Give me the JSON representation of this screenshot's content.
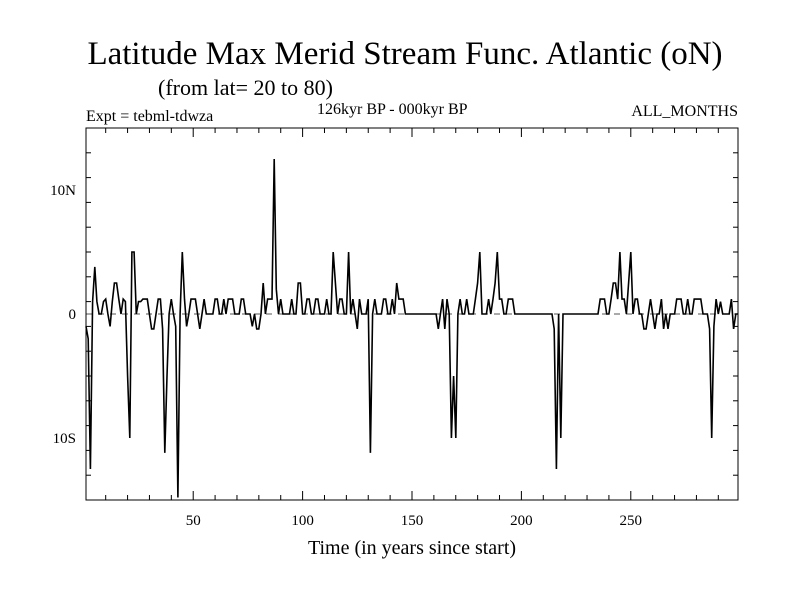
{
  "chart_data": {
    "type": "line",
    "title": "Latitude Max Merid Stream Func. Atlantic (oN)",
    "subtitle": "(from lat= 20 to 80)",
    "experiment_label": "Expt = tebml-tdwza",
    "period_label": "126kyr BP - 000kyr BP",
    "months_label": "ALL_MONTHS",
    "xlabel": "Time (in years since start)",
    "ylabel": "",
    "xlim": [
      1,
      299
    ],
    "ylim": [
      -15,
      15
    ],
    "x_ticks": [
      50,
      100,
      150,
      200,
      250
    ],
    "x_tick_labels": [
      "50",
      "100",
      "150",
      "200",
      "250"
    ],
    "x_minor_step": 10,
    "y_ticks": [
      -10,
      0,
      10
    ],
    "y_tick_labels": [
      "10S",
      "0",
      "10N"
    ],
    "y_minor_step": 2,
    "zero_line": "dashed",
    "series": [
      {
        "name": "Latitude Max",
        "x": [
          1,
          2,
          3,
          4,
          5,
          6,
          7,
          8,
          9,
          10,
          11,
          12,
          13,
          14,
          15,
          16,
          17,
          18,
          19,
          20,
          21,
          22,
          23,
          24,
          25,
          26,
          27,
          28,
          29,
          30,
          31,
          32,
          33,
          34,
          35,
          36,
          37,
          38,
          39,
          40,
          41,
          42,
          43,
          44,
          45,
          46,
          47,
          48,
          49,
          50,
          51,
          52,
          53,
          54,
          55,
          56,
          57,
          58,
          59,
          60,
          61,
          62,
          63,
          64,
          65,
          66,
          67,
          68,
          69,
          70,
          71,
          72,
          73,
          74,
          75,
          76,
          77,
          78,
          79,
          80,
          81,
          82,
          83,
          84,
          85,
          86,
          87,
          88,
          89,
          90,
          91,
          92,
          93,
          94,
          95,
          96,
          97,
          98,
          99,
          100,
          101,
          102,
          103,
          104,
          105,
          106,
          107,
          108,
          109,
          110,
          111,
          112,
          113,
          114,
          115,
          116,
          117,
          118,
          119,
          120,
          121,
          122,
          123,
          124,
          125,
          126,
          127,
          128,
          129,
          130,
          131,
          132,
          133,
          134,
          135,
          136,
          137,
          138,
          139,
          140,
          141,
          142,
          143,
          144,
          145,
          146,
          147,
          148,
          149,
          150,
          151,
          152,
          153,
          154,
          155,
          156,
          157,
          158,
          159,
          160,
          161,
          162,
          163,
          164,
          165,
          166,
          167,
          168,
          169,
          170,
          171,
          172,
          173,
          174,
          175,
          176,
          177,
          178,
          179,
          180,
          181,
          182,
          183,
          184,
          185,
          186,
          187,
          188,
          189,
          190,
          191,
          192,
          193,
          194,
          195,
          196,
          197,
          198,
          199,
          200,
          201,
          202,
          203,
          204,
          205,
          206,
          207,
          208,
          209,
          210,
          211,
          212,
          213,
          214,
          215,
          216,
          217,
          218,
          219,
          220,
          221,
          222,
          223,
          224,
          225,
          226,
          227,
          228,
          229,
          230,
          231,
          232,
          233,
          234,
          235,
          236,
          237,
          238,
          239,
          240,
          241,
          242,
          243,
          244,
          245,
          246,
          247,
          248,
          249,
          250,
          251,
          252,
          253,
          254,
          255,
          256,
          257,
          258,
          259,
          260,
          261,
          262,
          263,
          264,
          265,
          266,
          267,
          268,
          269,
          270,
          271,
          272,
          273,
          274,
          275,
          276,
          277,
          278,
          279,
          280,
          281,
          282,
          283,
          284,
          285,
          286,
          287,
          288,
          289,
          290,
          291,
          292,
          293,
          294,
          295,
          296,
          297,
          298,
          299
        ],
        "values": [
          -1,
          -2,
          -12.5,
          1,
          3.8,
          1,
          0,
          0,
          1,
          1.2,
          0,
          -1,
          1,
          2.5,
          2.5,
          1.2,
          0,
          1.2,
          1,
          -5,
          -10,
          5,
          5,
          0,
          1,
          1,
          1.2,
          1.2,
          1.2,
          0,
          -1.2,
          -1.2,
          0,
          1.2,
          1.2,
          -1.2,
          -11.2,
          -5,
          0,
          1.2,
          0,
          -1,
          -14.8,
          0,
          5,
          1.2,
          -1,
          0,
          1.2,
          1.2,
          1.2,
          0,
          -1.2,
          0,
          1.2,
          0,
          0,
          0,
          0,
          1.2,
          1.2,
          0,
          0,
          1.2,
          0,
          1.2,
          1.2,
          1.2,
          0,
          0,
          0,
          1.2,
          1.2,
          0,
          0,
          0,
          -1,
          0,
          -1.2,
          -1.2,
          0,
          2.5,
          0,
          1.2,
          1.2,
          1.2,
          12.5,
          2,
          0,
          1.2,
          0,
          0,
          0,
          0,
          1.2,
          0,
          0,
          2.5,
          2.5,
          0,
          0,
          1.2,
          1.2,
          0,
          0,
          1.2,
          1.2,
          0,
          0,
          0,
          1.2,
          0,
          0,
          5,
          2.5,
          0,
          1.2,
          1.2,
          0,
          0,
          5,
          0,
          1.2,
          0,
          -1.2,
          1.2,
          0,
          0,
          0,
          1.2,
          -11.2,
          0,
          1.2,
          0,
          0,
          0,
          1.2,
          1.2,
          0,
          0,
          1.2,
          0,
          2.5,
          1.2,
          1.2,
          1.2,
          0,
          0,
          0,
          0,
          0,
          0,
          0,
          0,
          0,
          0,
          0,
          0,
          0,
          0,
          0,
          -1.2,
          0,
          1.2,
          -1.2,
          1.2,
          0,
          -10,
          -5,
          -10,
          0,
          1.2,
          0,
          0,
          1.2,
          0,
          0,
          0,
          1.2,
          2.5,
          5,
          0,
          0,
          0,
          1.2,
          0,
          1.2,
          2.5,
          5,
          1.2,
          1.2,
          0,
          0,
          1.2,
          1.2,
          1.2,
          0,
          0,
          0,
          0,
          0,
          0,
          0,
          0,
          0,
          0,
          0,
          0,
          0,
          0,
          0,
          0,
          0,
          0,
          -1.2,
          -12.5,
          0,
          -10,
          0,
          0,
          0,
          0,
          0,
          0,
          0,
          0,
          0,
          0,
          0,
          0,
          0,
          0,
          0,
          0,
          0,
          1.2,
          1.2,
          1.2,
          0,
          0,
          1.2,
          2.5,
          2.5,
          1.2,
          5,
          1.2,
          1.2,
          0,
          2.5,
          5,
          0,
          1.2,
          1.2,
          0,
          0,
          -1.2,
          -1.2,
          0,
          1.2,
          0,
          -1.2,
          0,
          0,
          1.2,
          -1.2,
          0,
          -1.2,
          0,
          0,
          0,
          1.2,
          1.2,
          1.2,
          0,
          0,
          1.2,
          0,
          0,
          1.2,
          1.2,
          1.2,
          1.2,
          0,
          0,
          0,
          -1.2,
          -10,
          -1,
          1.2,
          0,
          1,
          0,
          0,
          0,
          0,
          1.2,
          -1.2,
          0,
          0
        ]
      }
    ]
  }
}
